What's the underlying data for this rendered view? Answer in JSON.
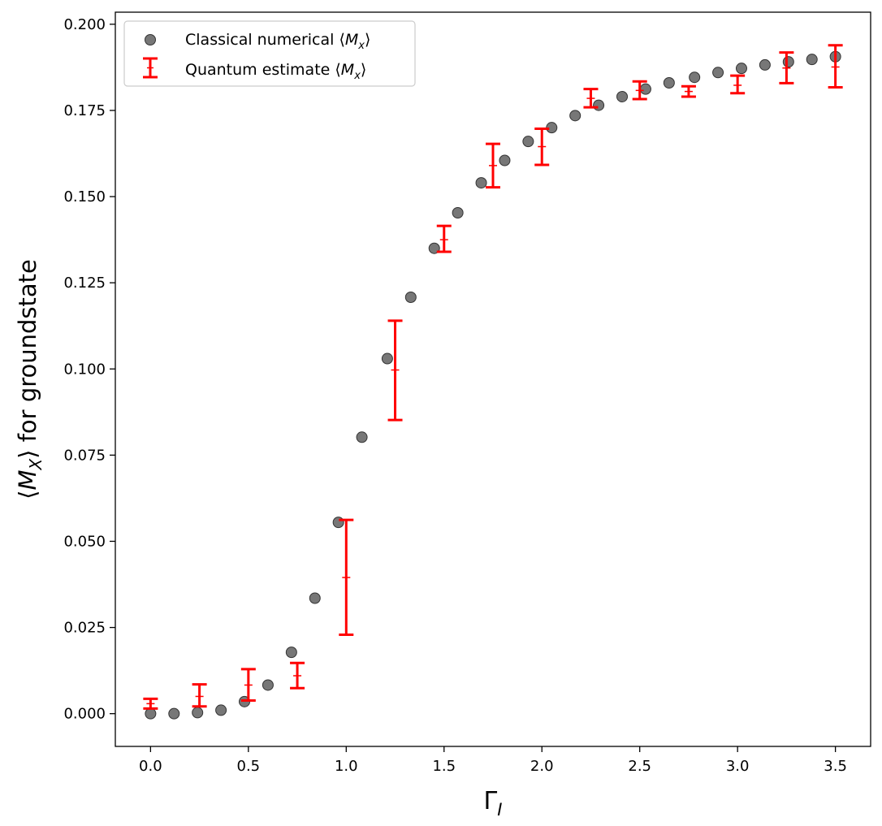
{
  "chart_data": {
    "type": "scatter",
    "xlabel": "Γ",
    "xlabel_sub": "I",
    "ylabel_pre": "⟨",
    "ylabel_var": "M",
    "ylabel_sub": "X",
    "ylabel_post": "⟩ for groundstate",
    "xlim": [
      -0.18,
      3.68
    ],
    "ylim": [
      -0.0095,
      0.2035
    ],
    "xticks": [
      "0.0",
      "0.5",
      "1.0",
      "1.5",
      "2.0",
      "2.5",
      "3.0",
      "3.5"
    ],
    "yticks": [
      "0.000",
      "0.025",
      "0.050",
      "0.075",
      "0.100",
      "0.125",
      "0.150",
      "0.175",
      "0.200"
    ],
    "legend_position": "upper-left",
    "legend": [
      {
        "label_pre": "Classical numerical ⟨",
        "var": "M",
        "sub": "x",
        "label_post": "⟩",
        "marker": "circle"
      },
      {
        "label_pre": "Quantum estimate ⟨",
        "var": "M",
        "sub": "x",
        "label_post": "⟩",
        "marker": "errorbar"
      }
    ],
    "series": [
      {
        "name": "Classical numerical ⟨Mx⟩",
        "kind": "scatter",
        "color": "#555555",
        "x": [
          0.0,
          0.12,
          0.24,
          0.36,
          0.48,
          0.6,
          0.72,
          0.84,
          0.96,
          1.08,
          1.21,
          1.33,
          1.45,
          1.57,
          1.69,
          1.81,
          1.93,
          2.05,
          2.17,
          2.29,
          2.41,
          2.53,
          2.65,
          2.78,
          2.9,
          3.02,
          3.14,
          3.26,
          3.38,
          3.5
        ],
        "y": [
          0.0,
          0.0,
          0.0003,
          0.001,
          0.0035,
          0.0083,
          0.0178,
          0.0335,
          0.0555,
          0.0802,
          0.103,
          0.1208,
          0.135,
          0.1453,
          0.154,
          0.1605,
          0.166,
          0.17,
          0.1735,
          0.1765,
          0.179,
          0.1812,
          0.183,
          0.1846,
          0.186,
          0.1872,
          0.1882,
          0.1891,
          0.1898,
          0.1906
        ]
      },
      {
        "name": "Quantum estimate ⟨Mx⟩",
        "kind": "errorbar",
        "color": "#ff0000",
        "x": [
          0.0,
          0.25,
          0.5,
          0.75,
          1.0,
          1.25,
          1.5,
          1.75,
          2.0,
          2.25,
          2.5,
          2.75,
          3.0,
          3.25,
          3.5
        ],
        "y": [
          0.0029,
          0.005,
          0.0083,
          0.011,
          0.0395,
          0.0997,
          0.1375,
          0.159,
          0.1645,
          0.1785,
          0.1808,
          0.1805,
          0.1823,
          0.1873,
          0.1876
        ],
        "ylow": [
          0.0015,
          0.0021,
          0.0038,
          0.0074,
          0.0229,
          0.0852,
          0.134,
          0.1527,
          0.1592,
          0.1759,
          0.1783,
          0.179,
          0.18,
          0.1829,
          0.1817
        ],
        "yhigh": [
          0.0043,
          0.0085,
          0.0129,
          0.0147,
          0.0562,
          0.114,
          0.1415,
          0.1653,
          0.1697,
          0.1812,
          0.1834,
          0.182,
          0.1851,
          0.1918,
          0.1939
        ]
      }
    ]
  }
}
